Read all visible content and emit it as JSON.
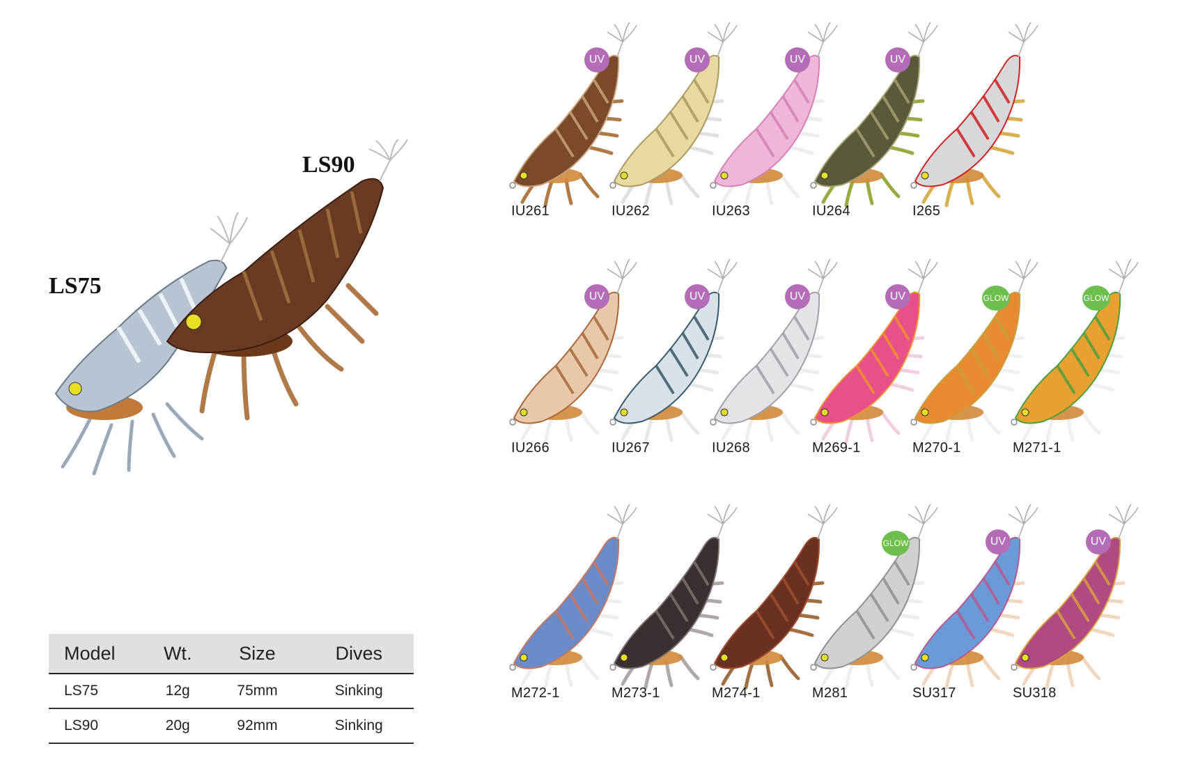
{
  "hero": {
    "ls75_label": "LS75",
    "ls90_label": "LS90"
  },
  "spec_table": {
    "headers": [
      "Model",
      "Wt.",
      "Size",
      "Dives"
    ],
    "rows": [
      [
        "LS75",
        "12g",
        "75mm",
        "Sinking"
      ],
      [
        "LS90",
        "20g",
        "92mm",
        "Sinking"
      ]
    ]
  },
  "lures": [
    {
      "code": "IU261",
      "badge": "UV",
      "body": "#7a4a2a",
      "accent": "#c9a27a",
      "legs": "#b07a45"
    },
    {
      "code": "IU262",
      "badge": "UV",
      "body": "#e8d9a0",
      "accent": "#a89a60",
      "legs": "#e0e0e0"
    },
    {
      "code": "IU263",
      "badge": "UV",
      "body": "#f0b6d8",
      "accent": "#d680b8",
      "legs": "#eeeeee"
    },
    {
      "code": "IU264",
      "badge": "UV",
      "body": "#5a5a3a",
      "accent": "#a4a070",
      "legs": "#9aaa40"
    },
    {
      "code": "I265",
      "badge": "",
      "body": "#d8d8dc",
      "accent": "#d22020",
      "legs": "#d8b050"
    },
    {
      "code": "IU266",
      "badge": "UV",
      "body": "#e8c8a8",
      "accent": "#a8683a",
      "legs": "#eeeeee"
    },
    {
      "code": "IU267",
      "badge": "UV",
      "body": "#d8e0e8",
      "accent": "#3a5a6a",
      "legs": "#e8e8e8"
    },
    {
      "code": "IU268",
      "badge": "UV",
      "body": "#e4e4e8",
      "accent": "#a0a0a8",
      "legs": "#eeeeee"
    },
    {
      "code": "M269-1",
      "badge": "UV",
      "body": "#e8508a",
      "accent": "#f09030",
      "legs": "#f0d0e0"
    },
    {
      "code": "M270-1",
      "badge": "GLOW",
      "body": "#e88a30",
      "accent": "#c8a040",
      "legs": "#f0f0f0"
    },
    {
      "code": "M271-1",
      "badge": "GLOW",
      "body": "#e8a030",
      "accent": "#4aa040",
      "legs": "#f0f0f0"
    },
    {
      "code": "M272-1",
      "badge": "",
      "body": "#6a8ac8",
      "accent": "#c87860",
      "legs": "#eeeeee"
    },
    {
      "code": "M273-1",
      "badge": "",
      "body": "#3a3030",
      "accent": "#807070",
      "legs": "#b0a8a8"
    },
    {
      "code": "M274-1",
      "badge": "",
      "body": "#6a3020",
      "accent": "#a05030",
      "legs": "#a07040"
    },
    {
      "code": "M281",
      "badge": "GLOW",
      "body": "#d0d0d0",
      "accent": "#909090",
      "legs": "#eeeeee"
    },
    {
      "code": "SU317",
      "badge": "UV",
      "body": "#6a9ad8",
      "accent": "#b85a90",
      "legs": "#f0d8c0"
    },
    {
      "code": "SU318",
      "badge": "UV",
      "body": "#b04a80",
      "accent": "#d8a040",
      "legs": "#f0d8c0"
    }
  ]
}
